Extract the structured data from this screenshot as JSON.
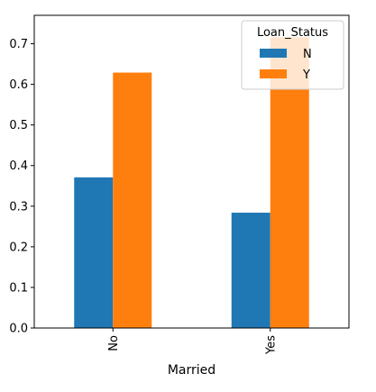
{
  "chart_data": {
    "type": "bar",
    "title": "",
    "xlabel": "Married",
    "ylabel": "",
    "categories": [
      "No",
      "Yes"
    ],
    "series": [
      {
        "name": "N",
        "values": [
          0.371,
          0.284
        ],
        "color": "#1f77b4"
      },
      {
        "name": "Y",
        "values": [
          0.629,
          0.716
        ],
        "color": "#ff7f0e"
      }
    ],
    "ylim": [
      0,
      0.77
    ],
    "yticks": [
      0.0,
      0.1,
      0.2,
      0.3,
      0.4,
      0.5,
      0.6,
      0.7
    ],
    "ytick_labels": [
      "0.0",
      "0.1",
      "0.2",
      "0.3",
      "0.4",
      "0.5",
      "0.6",
      "0.7"
    ],
    "xtick_rotation": 90,
    "grid": false,
    "legend": {
      "title": "Loan_Status",
      "placement": "top-right"
    }
  }
}
